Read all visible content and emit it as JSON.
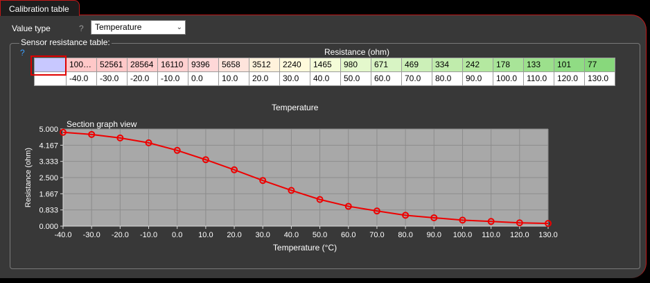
{
  "panel": {
    "tab_label": "Calibration table"
  },
  "value_type": {
    "label": "Value type",
    "help": "?",
    "selected": "Temperature"
  },
  "sensor_table": {
    "group_title": "Sensor resistance table:",
    "help": "?",
    "resistance_header": "Resistance (ohm)",
    "resistance_values": [
      "100…",
      "52561",
      "28564",
      "16110",
      "9396",
      "5658",
      "3512",
      "2240",
      "1465",
      "980",
      "671",
      "469",
      "334",
      "242",
      "178",
      "133",
      "101",
      "77"
    ],
    "temperature_values": [
      "-40.0",
      "-30.0",
      "-20.0",
      "-10.0",
      "0.0",
      "10.0",
      "20.0",
      "30.0",
      "40.0",
      "50.0",
      "60.0",
      "70.0",
      "80.0",
      "90.0",
      "100.0",
      "110.0",
      "120.0",
      "130.0"
    ],
    "cell_colors": [
      "#ffc8c8",
      "#ffc8c8",
      "#ffcccc",
      "#ffd0d0",
      "#ffd8d8",
      "#ffe4dc",
      "#fff2dc",
      "#fffadc",
      "#f4fcd8",
      "#e4f8cc",
      "#d8f4c4",
      "#ccf0b8",
      "#c0ecac",
      "#b4e8a0",
      "#a8e498",
      "#9ce08c",
      "#90dc84",
      "#88d87c"
    ]
  },
  "graph": {
    "heading": "Temperature",
    "view_label": "Section graph view"
  },
  "chart_data": {
    "type": "line",
    "title": "Section graph view",
    "xlabel": "Temperature (°C)",
    "ylabel": "Resistance (ohm)",
    "x": [
      -40,
      -30,
      -20,
      -10,
      0,
      10,
      20,
      30,
      40,
      50,
      60,
      70,
      80,
      90,
      100,
      110,
      120,
      130
    ],
    "y": [
      4.83,
      4.72,
      4.54,
      4.29,
      3.9,
      3.42,
      2.9,
      2.35,
      1.84,
      1.37,
      1.02,
      0.78,
      0.56,
      0.43,
      0.31,
      0.24,
      0.17,
      0.14
    ],
    "xticks": [
      "-40.0",
      "-30.0",
      "-20.0",
      "-10.0",
      "0.0",
      "10.0",
      "20.0",
      "30.0",
      "40.0",
      "50.0",
      "60.0",
      "70.0",
      "80.0",
      "90.0",
      "100.0",
      "110.0",
      "120.0",
      "130.0"
    ],
    "yticks": [
      "0.000",
      "0.833",
      "1.667",
      "2.500",
      "3.333",
      "4.167",
      "5.000"
    ],
    "xlim": [
      -40,
      130
    ],
    "ylim": [
      0,
      5
    ],
    "grid": true,
    "colors": {
      "line": "#ee0000",
      "plot_bg": "#a8a8a8",
      "grid": "#8c8c8c"
    }
  }
}
